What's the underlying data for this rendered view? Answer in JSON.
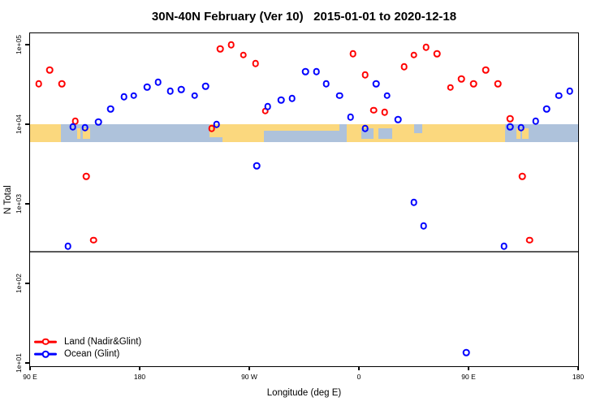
{
  "title": "30N-40N February (Ver 10)   2015-01-01 to 2020-12-18",
  "chart_data": {
    "type": "scatter",
    "title": "30N-40N February (Ver 10)   2015-01-01 to 2020-12-18",
    "xlabel": "Longitude (deg E)",
    "ylabel": "N Total",
    "x_axis": {
      "note": "longitude axis unwrapped, 90E eastward to 180 (spans 450 deg)",
      "range_deg": [
        90,
        540
      ],
      "ticks": [
        {
          "deg": 90,
          "label": "90 E"
        },
        {
          "deg": 180,
          "label": "180"
        },
        {
          "deg": 270,
          "label": "90 W"
        },
        {
          "deg": 360,
          "label": "0"
        },
        {
          "deg": 450,
          "label": "90 E"
        },
        {
          "deg": 540,
          "label": "180"
        }
      ]
    },
    "y_axis": {
      "scale": "log10",
      "range": [
        10,
        100000
      ],
      "ticks": [
        {
          "value": 100000,
          "label": "1e+05"
        },
        {
          "value": 10000,
          "label": "1e+04"
        },
        {
          "value": 1000,
          "label": "1e+03"
        },
        {
          "value": 100,
          "label": "1e+02"
        },
        {
          "value": 10,
          "label": "1e+01"
        }
      ]
    },
    "threshold_line": {
      "value": 250,
      "color": "#595959"
    },
    "map_band": {
      "value_top": 10000,
      "value_bottom": 5900,
      "ocean_color": "#AEC2DB",
      "land_color": "#FBD87E",
      "land_segments": [
        {
          "start": 90,
          "end": 115,
          "v": "full"
        },
        {
          "start": 128.5,
          "end": 131,
          "v": "mid"
        },
        {
          "start": 133,
          "end": 139,
          "v": "mid"
        },
        {
          "start": 237,
          "end": 282,
          "v": "full"
        },
        {
          "start": 282,
          "end": 344,
          "v": "top35"
        },
        {
          "start": 350,
          "end": 480,
          "v": "full"
        },
        {
          "start": 489.5,
          "end": 492.5,
          "v": "mid"
        },
        {
          "start": 494,
          "end": 499,
          "v": "mid"
        }
      ],
      "sea_patches": [
        {
          "start": 362,
          "end": 372,
          "v": "mid"
        },
        {
          "start": 376,
          "end": 387,
          "v": "mid"
        },
        {
          "start": 405,
          "end": 412,
          "v": "top50"
        },
        {
          "start": 237,
          "end": 248,
          "v": "bot30"
        }
      ]
    },
    "series": [
      {
        "name": "Land (Nadir&Glint)",
        "color": "#FF0000",
        "points": [
          [
            97,
            32000
          ],
          [
            106,
            48000
          ],
          [
            116,
            32000
          ],
          [
            127,
            11000
          ],
          [
            136,
            2200
          ],
          [
            142,
            350
          ],
          [
            239,
            8900
          ],
          [
            246,
            89000
          ],
          [
            255,
            100000
          ],
          [
            265,
            74000
          ],
          [
            275,
            58000
          ],
          [
            283,
            14600
          ],
          [
            355,
            77000
          ],
          [
            365,
            42000
          ],
          [
            372,
            15000
          ],
          [
            381,
            14200
          ],
          [
            397,
            53000
          ],
          [
            405,
            74000
          ],
          [
            415,
            93000
          ],
          [
            424,
            77000
          ],
          [
            435,
            29000
          ],
          [
            444,
            37000
          ],
          [
            454,
            32000
          ],
          [
            464,
            48000
          ],
          [
            474,
            32000
          ],
          [
            484,
            11800
          ],
          [
            494,
            2200
          ],
          [
            500,
            350
          ]
        ]
      },
      {
        "name": "Ocean (Glint)",
        "color": "#0000FF",
        "points": [
          [
            121,
            295
          ],
          [
            125,
            9300
          ],
          [
            135,
            9100
          ],
          [
            146,
            10700
          ],
          [
            156,
            15500
          ],
          [
            167,
            22000
          ],
          [
            175,
            23000
          ],
          [
            186,
            29500
          ],
          [
            195,
            34000
          ],
          [
            205,
            26000
          ],
          [
            214,
            27500
          ],
          [
            225,
            23000
          ],
          [
            234,
            30000
          ],
          [
            243,
            10000
          ],
          [
            276,
            3000
          ],
          [
            285,
            16700
          ],
          [
            296,
            20000
          ],
          [
            305,
            21000
          ],
          [
            316,
            46000
          ],
          [
            325,
            46000
          ],
          [
            333,
            32000
          ],
          [
            344,
            23000
          ],
          [
            353,
            12300
          ],
          [
            365,
            8900
          ],
          [
            374,
            32000
          ],
          [
            383,
            23000
          ],
          [
            392,
            11500
          ],
          [
            405,
            1050
          ],
          [
            413,
            530
          ],
          [
            448,
            13.5
          ],
          [
            479,
            295
          ],
          [
            484,
            9300
          ],
          [
            493,
            9100
          ],
          [
            505,
            11000
          ],
          [
            514,
            15500
          ],
          [
            524,
            23000
          ],
          [
            533,
            26000
          ]
        ]
      }
    ],
    "legend_position": "bottom-left"
  }
}
